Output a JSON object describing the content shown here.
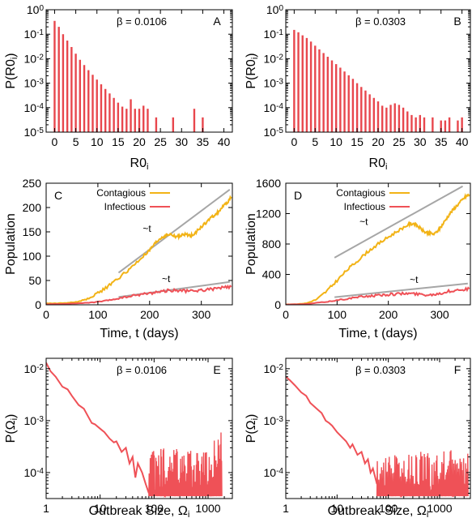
{
  "colors": {
    "red": "#e8474d",
    "redline": "#ef5157",
    "yellow": "#f2b316",
    "gray": "#a6a6a6"
  },
  "chart_data": [
    {
      "id": "A",
      "type": "bar",
      "letter": "A",
      "annotation": "β = 0.0106",
      "xlabel": "R0",
      "xlabel_sub": "i",
      "ylabel": "P(R0",
      "ylabel_sub": "i",
      "ylabel_close": ")",
      "xlim": [
        -2,
        42
      ],
      "ylim_log10": [
        -5,
        0
      ],
      "log_y": true,
      "xticks": [
        0,
        5,
        10,
        15,
        20,
        25,
        30,
        35,
        40
      ],
      "yticks": [
        {
          "exp": 0,
          "label_base": "10",
          "label_exp": "0"
        },
        {
          "exp": -1,
          "label_base": "10",
          "label_exp": "-1"
        },
        {
          "exp": -2,
          "label_base": "10",
          "label_exp": "-2"
        },
        {
          "exp": -3,
          "label_base": "10",
          "label_exp": "-3"
        },
        {
          "exp": -4,
          "label_base": "10",
          "label_exp": "-4"
        },
        {
          "exp": -5,
          "label_base": "10",
          "label_exp": "-5"
        }
      ],
      "x": [
        0,
        1,
        2,
        3,
        4,
        5,
        6,
        7,
        8,
        9,
        10,
        11,
        12,
        13,
        14,
        15,
        16,
        17,
        18,
        19,
        20,
        21,
        22,
        24,
        28,
        33,
        35
      ],
      "values": [
        0.35,
        0.2,
        0.1,
        0.055,
        0.03,
        0.016,
        0.009,
        0.0055,
        0.0034,
        0.0022,
        0.0014,
        0.0009,
        0.00058,
        0.00038,
        0.00025,
        0.00016,
        0.00011,
        9e-05,
        0.00022,
        9e-05,
        9e-05,
        0.00012,
        9e-05,
        4e-05,
        4e-05,
        9e-05,
        4e-05
      ]
    },
    {
      "id": "B",
      "type": "bar",
      "letter": "B",
      "annotation": "β = 0.0303",
      "xlabel": "R0",
      "xlabel_sub": "i",
      "ylabel": "P(R0",
      "ylabel_sub": "i",
      "ylabel_close": ")",
      "xlim": [
        -2,
        42
      ],
      "ylim_log10": [
        -5,
        0
      ],
      "log_y": true,
      "xticks": [
        0,
        5,
        10,
        15,
        20,
        25,
        30,
        35,
        40
      ],
      "yticks": [
        {
          "exp": 0,
          "label_base": "10",
          "label_exp": "0"
        },
        {
          "exp": -1,
          "label_base": "10",
          "label_exp": "-1"
        },
        {
          "exp": -2,
          "label_base": "10",
          "label_exp": "-2"
        },
        {
          "exp": -3,
          "label_base": "10",
          "label_exp": "-3"
        },
        {
          "exp": -4,
          "label_base": "10",
          "label_exp": "-4"
        },
        {
          "exp": -5,
          "label_base": "10",
          "label_exp": "-5"
        }
      ],
      "x": [
        0,
        1,
        2,
        3,
        4,
        5,
        6,
        7,
        8,
        9,
        10,
        11,
        12,
        13,
        14,
        15,
        16,
        17,
        18,
        19,
        20,
        21,
        22,
        23,
        24,
        25,
        26,
        27,
        28,
        29,
        30,
        31,
        33,
        35,
        36,
        37,
        39,
        40
      ],
      "values": [
        0.15,
        0.12,
        0.09,
        0.07,
        0.05,
        0.034,
        0.024,
        0.017,
        0.012,
        0.0085,
        0.006,
        0.0043,
        0.003,
        0.0021,
        0.0015,
        0.001,
        0.0007,
        0.0005,
        0.00035,
        0.00025,
        0.00018,
        0.00012,
        0.0001,
        0.00013,
        0.00015,
        0.00013,
        0.0001,
        7e-05,
        5e-05,
        4e-05,
        5e-05,
        4e-05,
        4e-05,
        3e-05,
        3e-05,
        4e-05,
        3e-05,
        4e-05
      ]
    },
    {
      "id": "C",
      "type": "line",
      "letter": "C",
      "xlabel": "Time, t (days)",
      "ylabel": "Population",
      "xlim": [
        0,
        360
      ],
      "ylim": [
        0,
        250
      ],
      "xticks": [
        0,
        100,
        200,
        300
      ],
      "yticks": [
        0,
        50,
        100,
        150,
        200,
        250
      ],
      "legend": [
        "Contagious",
        "Infectious"
      ],
      "trend_labels": [
        "~t",
        "~t"
      ],
      "trend_lines": [
        {
          "x": [
            140,
            355
          ],
          "y": [
            66,
            237
          ]
        },
        {
          "x": [
            140,
            355
          ],
          "y": [
            16,
            47
          ]
        }
      ],
      "trend_label_pos": [
        {
          "x": 195,
          "y": 150
        },
        {
          "x": 232,
          "y": 47
        }
      ],
      "series": [
        {
          "name": "Contagious",
          "color": "#f2b316",
          "x": [
            0,
            20,
            40,
            60,
            80,
            100,
            120,
            140,
            160,
            180,
            200,
            210,
            220,
            230,
            240,
            250,
            260,
            270,
            280,
            290,
            300,
            310,
            320,
            330,
            340,
            350,
            358
          ],
          "y": [
            3,
            3,
            4,
            6,
            12,
            24,
            38,
            55,
            72,
            92,
            112,
            125,
            136,
            142,
            145,
            140,
            142,
            145,
            142,
            150,
            160,
            170,
            180,
            188,
            200,
            210,
            222
          ]
        },
        {
          "name": "Infectious",
          "color": "#ef5157",
          "x": [
            0,
            40,
            80,
            100,
            120,
            140,
            160,
            180,
            200,
            220,
            240,
            260,
            280,
            300,
            320,
            340,
            358
          ],
          "y": [
            1,
            2,
            4,
            6,
            9,
            13,
            17,
            21,
            24,
            27,
            30,
            29,
            28,
            30,
            32,
            35,
            37
          ]
        }
      ]
    },
    {
      "id": "D",
      "type": "line",
      "letter": "D",
      "xlabel": "Time, t (days)",
      "ylabel": "Population",
      "xlim": [
        0,
        360
      ],
      "ylim": [
        0,
        1600
      ],
      "xticks": [
        0,
        100,
        200,
        300
      ],
      "yticks": [
        0,
        400,
        800,
        1200,
        1600
      ],
      "legend": [
        "Contagious",
        "Infectious"
      ],
      "trend_labels": [
        "~t",
        "~t"
      ],
      "trend_lines": [
        {
          "x": [
            95,
            345
          ],
          "y": [
            620,
            1560
          ]
        },
        {
          "x": [
            95,
            355
          ],
          "y": [
            100,
            280
          ]
        }
      ],
      "trend_label_pos": [
        {
          "x": 152,
          "y": 1050
        },
        {
          "x": 250,
          "y": 290
        }
      ],
      "series": [
        {
          "name": "Contagious",
          "color": "#f2b316",
          "x": [
            0,
            20,
            40,
            60,
            80,
            100,
            120,
            140,
            160,
            180,
            200,
            220,
            240,
            250,
            260,
            270,
            280,
            290,
            300,
            310,
            320,
            330,
            340,
            350,
            358
          ],
          "y": [
            5,
            8,
            20,
            70,
            180,
            320,
            460,
            580,
            700,
            800,
            890,
            980,
            1060,
            1070,
            1020,
            960,
            940,
            930,
            1000,
            1100,
            1200,
            1280,
            1350,
            1420,
            1450
          ]
        },
        {
          "name": "Infectious",
          "color": "#ef5157",
          "x": [
            0,
            40,
            80,
            100,
            120,
            140,
            160,
            180,
            200,
            220,
            240,
            260,
            280,
            300,
            320,
            340,
            358
          ],
          "y": [
            3,
            10,
            40,
            60,
            80,
            100,
            115,
            125,
            135,
            145,
            150,
            140,
            130,
            150,
            180,
            200,
            210
          ]
        }
      ]
    },
    {
      "id": "E",
      "type": "line",
      "letter": "E",
      "annotation": "β = 0.0106",
      "xlabel": "Outbreak Size, Ω",
      "xlabel_sub": "i",
      "ylabel": "P(Ω",
      "ylabel_sub": "i",
      "ylabel_close": ")",
      "log_x": true,
      "log_y": true,
      "xlim_log10": [
        0,
        3.45
      ],
      "ylim_log10": [
        -4.5,
        -1.8
      ],
      "xticks": [
        {
          "exp": 0,
          "label": "1"
        },
        {
          "exp": 1,
          "label": "10"
        },
        {
          "exp": 2,
          "label": "100"
        },
        {
          "exp": 3,
          "label": "1000"
        }
      ],
      "yticks": [
        {
          "exp": -2,
          "label_base": "10",
          "label_exp": "-2"
        },
        {
          "exp": -3,
          "label_base": "10",
          "label_exp": "-3"
        },
        {
          "exp": -4,
          "label_base": "10",
          "label_exp": "-4"
        }
      ],
      "series": [
        {
          "name": "",
          "color": "#ef5157",
          "x": [
            1,
            1.2,
            1.5,
            2,
            2.5,
            3,
            4,
            5,
            6,
            7,
            8,
            10,
            12,
            15,
            18,
            20,
            25,
            30,
            35,
            40,
            45,
            50,
            60,
            70,
            80
          ],
          "y": [
            0.013,
            0.009,
            0.007,
            0.0045,
            0.004,
            0.003,
            0.002,
            0.0017,
            0.0012,
            0.0009,
            0.00085,
            0.0007,
            0.0006,
            0.00045,
            0.00038,
            0.0004,
            0.00025,
            0.0003,
            0.00015,
            0.0002,
            8e-05,
            0.00015,
            0.0001,
            6e-05,
            4e-05
          ]
        }
      ],
      "noise_band": {
        "x_from": 80,
        "x_to": 1800,
        "y_low": 3.5e-05,
        "y_high": 0.0003,
        "x_rise_from": 1100,
        "y_rise_peak": 0.0008
      }
    },
    {
      "id": "F",
      "type": "line",
      "letter": "F",
      "annotation": "β = 0.0303",
      "xlabel": "Outbreak Size, Ω",
      "xlabel_sub": "i",
      "ylabel": "P(Ω",
      "ylabel_sub": "i",
      "ylabel_close": ")",
      "log_x": true,
      "log_y": true,
      "xlim_log10": [
        0,
        3.6
      ],
      "ylim_log10": [
        -4.5,
        -1.8
      ],
      "xticks": [
        {
          "exp": 0,
          "label": "1"
        },
        {
          "exp": 1,
          "label": "10"
        },
        {
          "exp": 2,
          "label": "100"
        },
        {
          "exp": 3,
          "label": "1000"
        }
      ],
      "yticks": [
        {
          "exp": -2,
          "label_base": "10",
          "label_exp": "-2"
        },
        {
          "exp": -3,
          "label_base": "10",
          "label_exp": "-3"
        },
        {
          "exp": -4,
          "label_base": "10",
          "label_exp": "-4"
        }
      ],
      "series": [
        {
          "name": "",
          "color": "#ef5157",
          "x": [
            1,
            1.2,
            1.5,
            2,
            2.5,
            3,
            4,
            5,
            6,
            7,
            8,
            10,
            12,
            15,
            18,
            20,
            25,
            30,
            35,
            40,
            45,
            50,
            60
          ],
          "y": [
            0.007,
            0.006,
            0.0048,
            0.0035,
            0.003,
            0.0022,
            0.0017,
            0.0014,
            0.001,
            0.0009,
            0.0008,
            0.0006,
            0.0005,
            0.0004,
            0.0003,
            0.00035,
            0.00022,
            0.00025,
            0.00015,
            0.00018,
            0.0001,
            0.00012,
            6e-05
          ]
        }
      ],
      "noise_band": {
        "x_from": 60,
        "x_to": 3600,
        "y_low": 3.5e-05,
        "y_high": 0.00028,
        "x_rise_from": 2800,
        "y_rise_peak": 0.0035
      }
    }
  ]
}
